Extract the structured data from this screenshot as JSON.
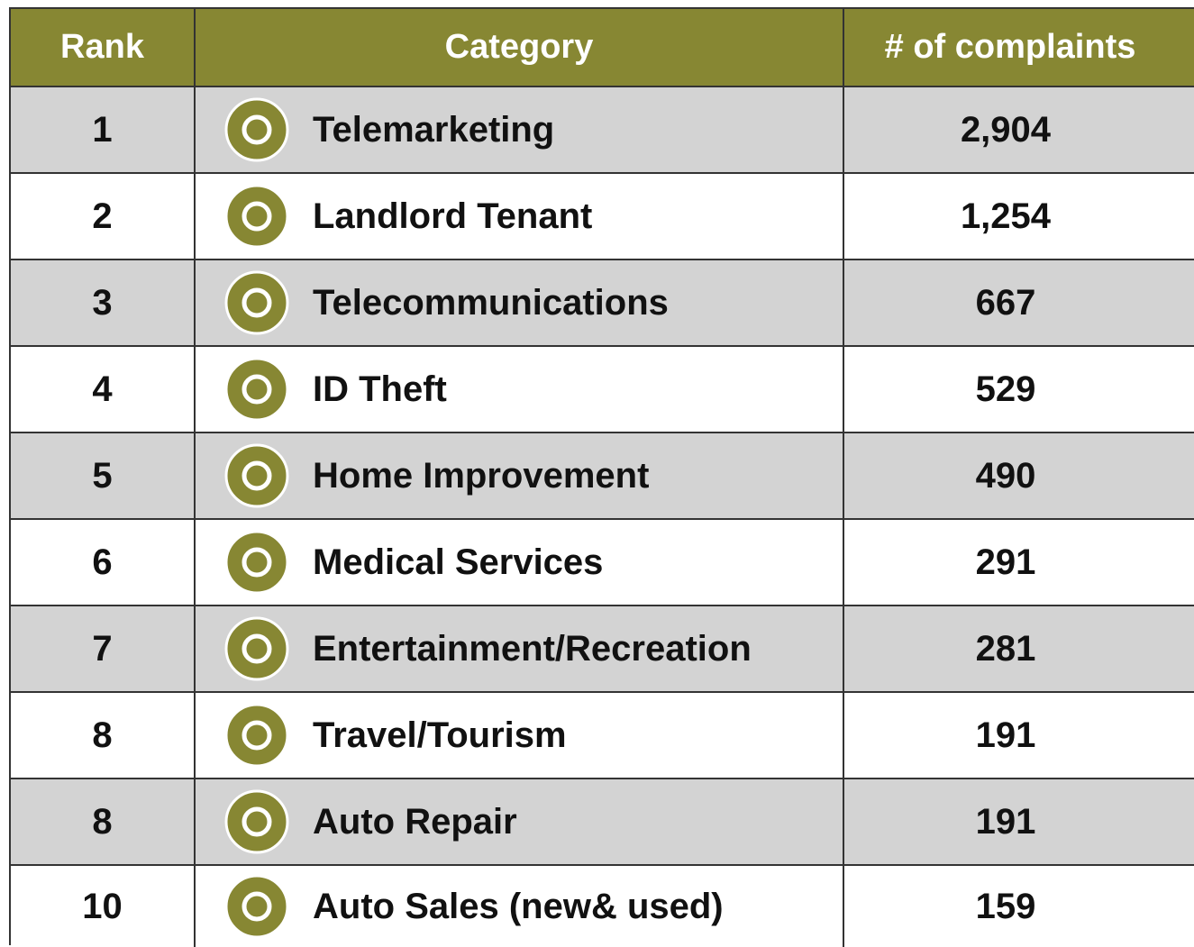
{
  "table": {
    "header": [
      "Rank",
      "Category",
      "# of complaints"
    ],
    "rows": [
      [
        "1",
        "Telemarketing",
        "2,904"
      ],
      [
        "2",
        "Landlord Tenant",
        "1,254"
      ],
      [
        "3",
        "Telecommunications",
        "667"
      ],
      [
        "4",
        "ID Theft",
        "529"
      ],
      [
        "5",
        "Home Improvement",
        "490"
      ],
      [
        "6",
        "Medical Services",
        "291"
      ],
      [
        "7",
        "Entertainment/Recreation",
        "281"
      ],
      [
        "8",
        "Travel/Tourism",
        "191"
      ],
      [
        "8",
        "Auto Repair",
        "191"
      ],
      [
        "10",
        "Auto Sales (new& used)",
        "159"
      ]
    ]
  }
}
